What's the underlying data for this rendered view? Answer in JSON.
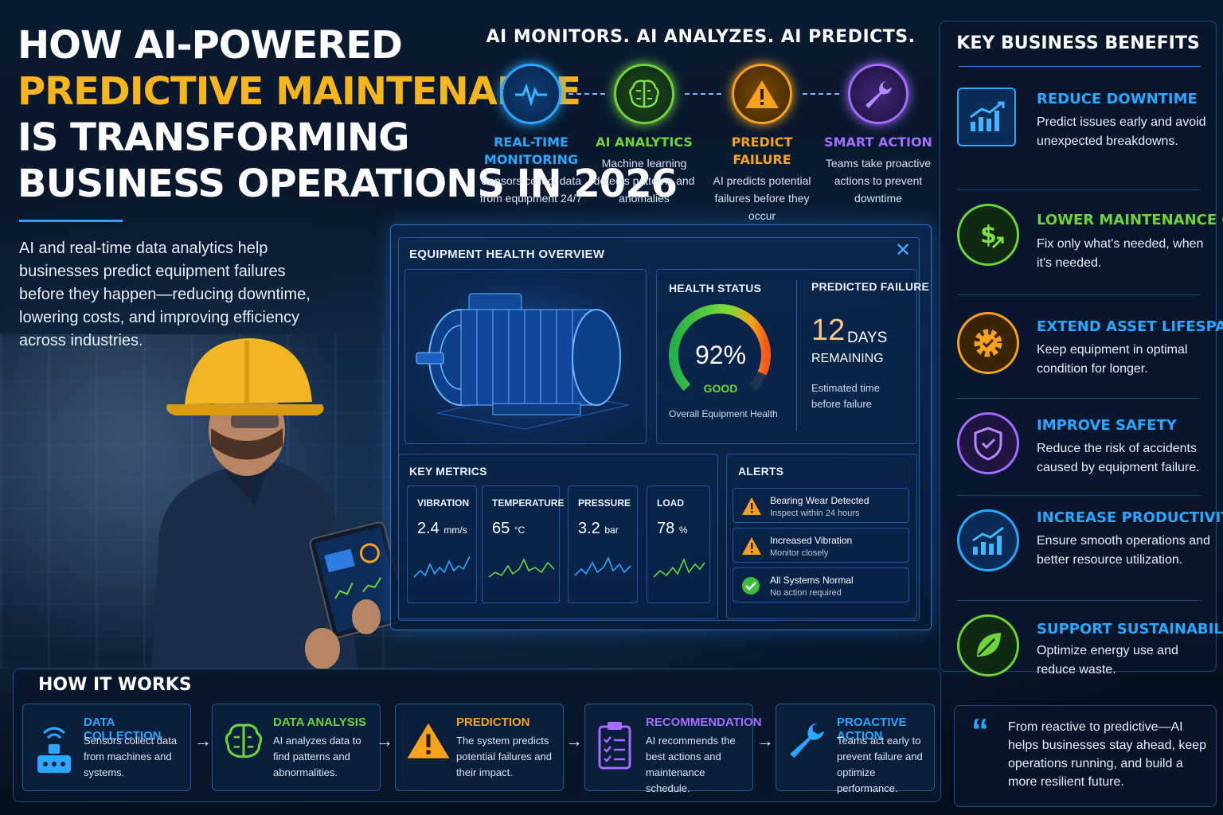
{
  "headline": {
    "line1": "HOW AI-POWERED",
    "line2": "PREDICTIVE MAINTENANCE",
    "line3": "IS TRANSFORMING",
    "line4": "BUSINESS OPERATIONS IN 2026"
  },
  "intro": "AI and real-time data analytics help businesses predict equipment failures before they happen—reducing downtime, lowering costs, and improving efficiency across industries.",
  "process": {
    "slogan": "AI MONITORS. AI ANALYZES. AI PREDICTS.",
    "steps": [
      {
        "title": "REAL-TIME MONITORING",
        "desc": "Sensors collect data from equipment 24/7",
        "color": "#2aa8ff",
        "icon": "heartbeat-icon"
      },
      {
        "title": "AI ANALYTICS",
        "desc": "Machine learning detects patterns and anomalies",
        "color": "#6fd33a",
        "icon": "brain-icon"
      },
      {
        "title": "PREDICT FAILURE",
        "desc": "AI predicts potential failures before they occur",
        "color": "#f7a21d",
        "icon": "warning-icon"
      },
      {
        "title": "SMART ACTION",
        "desc": "Teams take proactive actions to prevent downtime",
        "color": "#a46cff",
        "icon": "wrench-icon"
      }
    ]
  },
  "dashboard": {
    "title": "EQUIPMENT HEALTH OVERVIEW",
    "close": "✕",
    "health": {
      "label": "HEALTH STATUS",
      "value": "92%",
      "state": "GOOD",
      "caption": "Overall Equipment Health",
      "percent": 92
    },
    "predicted": {
      "label": "PREDICTED FAILURE",
      "days": "12",
      "unit": "DAYS",
      "remaining": "REMAINING",
      "caption": "Estimated time before failure"
    },
    "metrics_label": "KEY METRICS",
    "metrics": [
      {
        "name": "VIBRATION",
        "value": "2.4",
        "unit": "mm/s",
        "color": "#2aa8ff"
      },
      {
        "name": "TEMPERATURE",
        "value": "65",
        "unit": "°C",
        "color": "#6fd33a"
      },
      {
        "name": "PRESSURE",
        "value": "3.2",
        "unit": "bar",
        "color": "#2aa8ff"
      },
      {
        "name": "LOAD",
        "value": "78",
        "unit": "%",
        "color": "#6fd33a"
      }
    ],
    "alerts_label": "ALERTS",
    "alerts": [
      {
        "title": "Bearing Wear Detected",
        "sub": "Inspect within 24 hours",
        "kind": "warning"
      },
      {
        "title": "Increased Vibration",
        "sub": "Monitor closely",
        "kind": "warning"
      },
      {
        "title": "All Systems Normal",
        "sub": "No action required",
        "kind": "ok"
      }
    ]
  },
  "benefits": {
    "title": "KEY BUSINESS BENEFITS",
    "items": [
      {
        "title": "REDUCE DOWNTIME",
        "desc": "Predict issues early and avoid unexpected breakdowns.",
        "color": "#2aa8ff",
        "icon": "bar-chart-up-icon"
      },
      {
        "title": "LOWER MAINTENANCE COSTS",
        "desc": "Fix only what's needed, when it's needed.",
        "color": "#6fd33a",
        "icon": "dollar-icon"
      },
      {
        "title": "EXTEND ASSET LIFESPAN",
        "desc": "Keep equipment in optimal condition for longer.",
        "color": "#f7a21d",
        "icon": "gear-check-icon"
      },
      {
        "title": "IMPROVE SAFETY",
        "desc": "Reduce the risk of accidents caused by equipment failure.",
        "color": "#a46cff",
        "icon": "shield-check-icon"
      },
      {
        "title": "INCREASE PRODUCTIVITY",
        "desc": "Ensure smooth operations and better resource utilization.",
        "color": "#2aa8ff",
        "icon": "growth-chart-icon"
      },
      {
        "title": "SUPPORT SUSTAINABILITY",
        "desc": "Optimize energy use and reduce waste.",
        "color": "#6fd33a",
        "icon": "leaf-icon"
      }
    ],
    "quote": "From reactive to predictive—AI helps businesses stay ahead, keep operations running, and build a more resilient future."
  },
  "how": {
    "title": "HOW IT WORKS",
    "steps": [
      {
        "title": "DATA COLLECTION",
        "desc": "Sensors collect data from machines and systems.",
        "color": "#2aa8ff",
        "icon": "sensor-icon"
      },
      {
        "title": "DATA ANALYSIS",
        "desc": "AI analyzes data to find patterns and abnormalities.",
        "color": "#6fd33a",
        "icon": "brain-icon"
      },
      {
        "title": "PREDICTION",
        "desc": "The system predicts potential failures and their impact.",
        "color": "#f7a21d",
        "icon": "warning-icon"
      },
      {
        "title": "RECOMMENDATION",
        "desc": "AI recommends the best actions and maintenance schedule.",
        "color": "#a46cff",
        "icon": "clipboard-icon"
      },
      {
        "title": "PROACTIVE ACTION",
        "desc": "Teams act early to prevent failure and optimize performance.",
        "color": "#2aa8ff",
        "icon": "wrench-icon"
      }
    ]
  }
}
